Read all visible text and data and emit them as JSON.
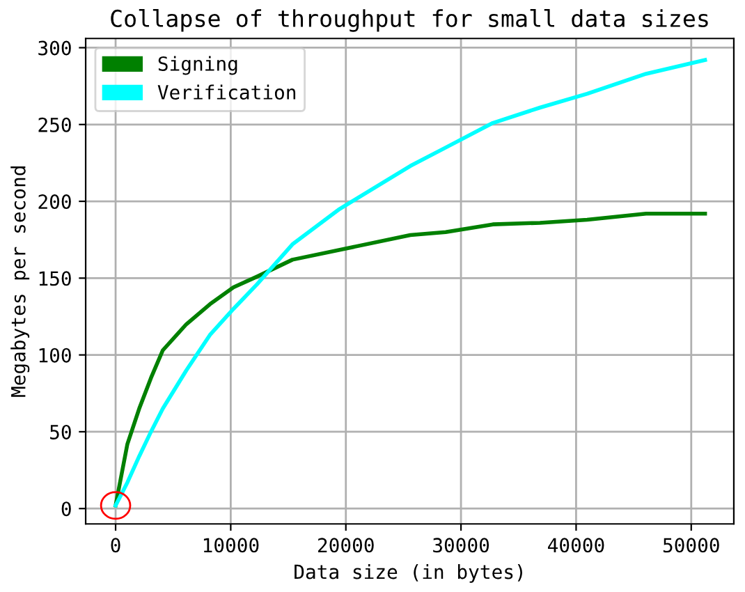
{
  "chart_data": {
    "type": "line",
    "title": "Collapse of throughput for small data sizes",
    "xlabel": "Data size (in bytes)",
    "ylabel": "Megabytes per second",
    "xlim": [
      -2600,
      53700
    ],
    "xticks": [
      0,
      10000,
      20000,
      30000,
      40000,
      50000
    ],
    "ylim": [
      -10,
      306
    ],
    "yticks": [
      0,
      50,
      100,
      150,
      200,
      250,
      300
    ],
    "grid": true,
    "legend": "top left",
    "line_style": "solid",
    "series": [
      {
        "name": "Signing",
        "color": "#008000",
        "x": [
          0,
          1024,
          2048,
          3072,
          4096,
          6144,
          8192,
          10240,
          12288,
          15360,
          20480,
          25600,
          28672,
          32768,
          36864,
          40960,
          46080,
          51200
        ],
        "values": [
          2,
          42,
          65,
          85,
          103,
          120,
          133,
          144,
          151,
          162,
          170,
          178,
          180,
          185,
          186,
          188,
          192,
          192
        ]
      },
      {
        "name": "Verification",
        "color": "#00ffff",
        "x": [
          0,
          1024,
          2048,
          3072,
          4096,
          6144,
          8192,
          10240,
          12288,
          15360,
          19456,
          25600,
          28672,
          32768,
          36864,
          40960,
          46080,
          51200
        ],
        "values": [
          2,
          17,
          34,
          50,
          65,
          90,
          113,
          130,
          146,
          172,
          195,
          223,
          235,
          251,
          261,
          270,
          283,
          292
        ]
      }
    ]
  }
}
